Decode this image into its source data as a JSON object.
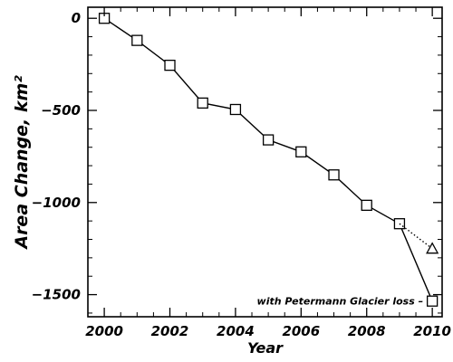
{
  "chart_data": {
    "type": "line",
    "xlabel": "Year",
    "ylabel": "Area Change, km²",
    "xlim": [
      1999.5,
      2010.3
    ],
    "ylim": [
      -1620,
      60
    ],
    "x_ticks": [
      2000,
      2002,
      2004,
      2006,
      2008,
      2010
    ],
    "y_ticks": [
      0,
      -500,
      -1000,
      -1500
    ],
    "x_minor_step": 0.5,
    "y_minor_step": 100,
    "grid": false,
    "legend": "none",
    "series": [
      {
        "marker": "square",
        "line": "solid",
        "x": [
          2000,
          2001,
          2002,
          2003,
          2004,
          2005,
          2006,
          2007,
          2008,
          2009,
          2010
        ],
        "y": [
          0,
          -120,
          -255,
          -460,
          -495,
          -660,
          -725,
          -850,
          -1015,
          -1115,
          -1535
        ]
      },
      {
        "marker": "triangle",
        "line": "dotted",
        "x": [
          2009,
          2010
        ],
        "y": [
          -1115,
          -1250
        ]
      }
    ],
    "annotations": [
      {
        "text": "with Petermann Glacier loss –",
        "x": 2010,
        "y": -1535
      }
    ]
  }
}
